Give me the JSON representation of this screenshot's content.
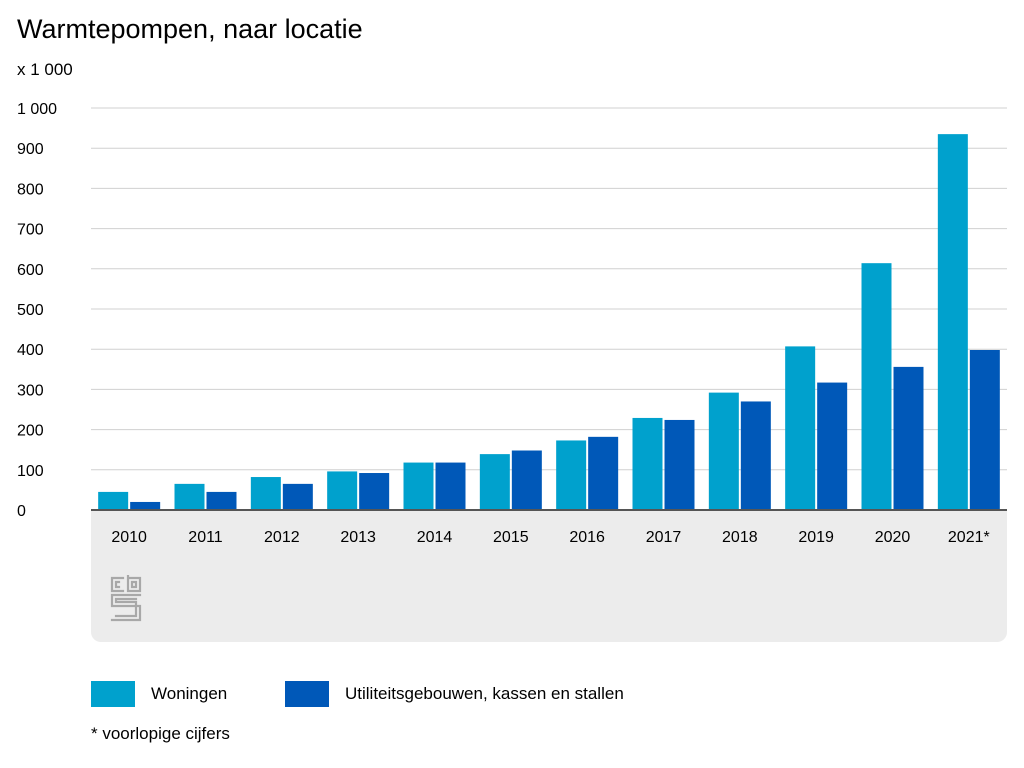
{
  "title": "Warmtepompen, naar locatie",
  "unit_label": "x 1 000",
  "footnote": "* voorlopige cijfers",
  "colors": {
    "woningen": "#00a1cd",
    "utiliteit": "#0058b8",
    "grid": "#d0d0d0",
    "axis": "#555555",
    "panel": "#ececec"
  },
  "logo": "cbs-logo",
  "chart_data": {
    "type": "bar",
    "title": "Warmtepompen, naar locatie",
    "ylabel": "x 1 000",
    "xlabel": "",
    "ylim": [
      0,
      1000
    ],
    "yticks": [
      0,
      100,
      200,
      300,
      400,
      500,
      600,
      700,
      800,
      900,
      1000
    ],
    "ytick_labels": [
      "0",
      "100",
      "200",
      "300",
      "400",
      "500",
      "600",
      "700",
      "800",
      "900",
      "1 000"
    ],
    "grid": true,
    "legend_position": "bottom",
    "categories": [
      "2010",
      "2011",
      "2012",
      "2013",
      "2014",
      "2015",
      "2016",
      "2017",
      "2018",
      "2019",
      "2020",
      "2021*"
    ],
    "series": [
      {
        "name": "Woningen",
        "color": "#00a1cd",
        "values": [
          45,
          65,
          82,
          96,
          118,
          139,
          173,
          229,
          292,
          407,
          614,
          935
        ]
      },
      {
        "name": "Utiliteitsgebouwen, kassen en stallen",
        "color": "#0058b8",
        "values": [
          20,
          45,
          65,
          92,
          118,
          148,
          182,
          224,
          270,
          317,
          356,
          398
        ]
      }
    ]
  }
}
